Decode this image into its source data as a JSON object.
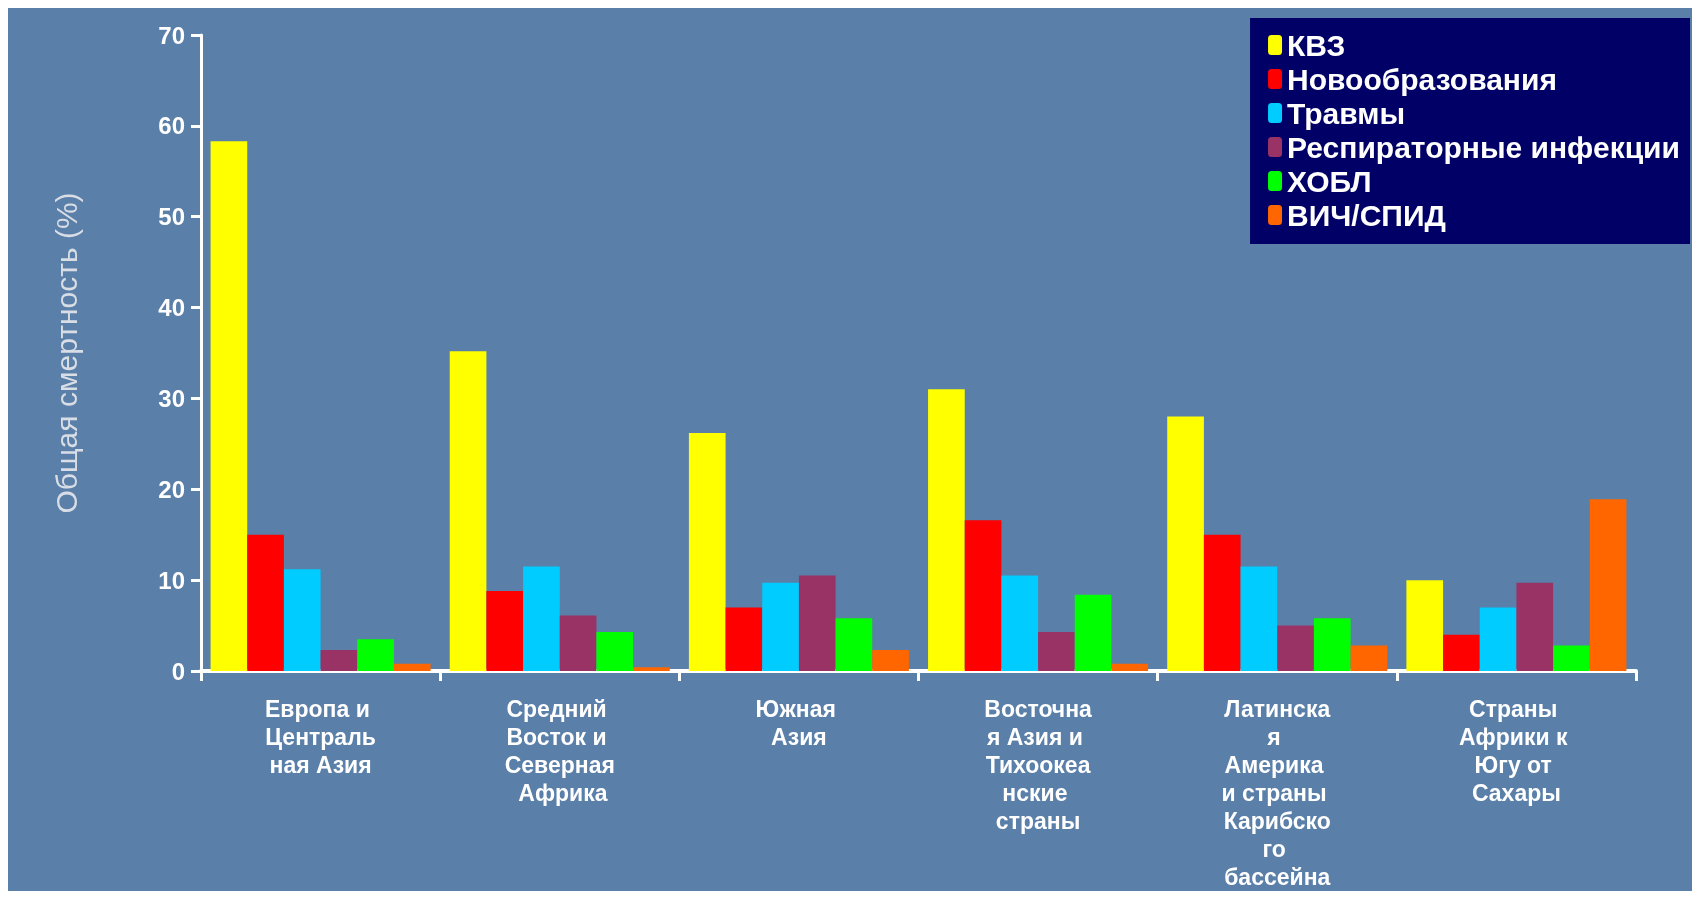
{
  "chart_data": {
    "type": "bar",
    "ylabel": "Общая смертность (%)",
    "categories": [
      "Европа и Центральная Азия",
      "Средний Восток и Северная Африка",
      "Южная Азия",
      "Восточная Азия и Тихоокеанские страны",
      "Латинская Америка и страны Карибского бассейна",
      "Страны Африки к Югу от Сахары"
    ],
    "series": [
      {
        "name": "КВЗ",
        "color": "#ffff00",
        "values": [
          58.3,
          35.2,
          26.2,
          31,
          28,
          10
        ]
      },
      {
        "name": "Новообразования",
        "color": "#ff0000",
        "values": [
          15,
          8.8,
          7,
          16.6,
          15,
          4
        ]
      },
      {
        "name": "Травмы",
        "color": "#00ccff",
        "values": [
          11.2,
          11.5,
          9.7,
          10.5,
          11.5,
          7
        ]
      },
      {
        "name": "Респираторные инфекции",
        "color": "#993366",
        "values": [
          2.3,
          6.1,
          10.5,
          4.3,
          5,
          9.7
        ]
      },
      {
        "name": "ХОБЛ",
        "color": "#00ff00",
        "values": [
          3.5,
          4.3,
          5.8,
          8.4,
          5.8,
          2.8
        ]
      },
      {
        "name": "ВИЧ/СПИД",
        "color": "#ff6600",
        "values": [
          0.8,
          0.4,
          2.3,
          0.8,
          2.8,
          18.9
        ]
      }
    ],
    "ylim": [
      0,
      70
    ],
    "yticks": [
      0,
      10,
      20,
      30,
      40,
      50,
      60,
      70
    ],
    "grid": false,
    "legend": "top right"
  }
}
